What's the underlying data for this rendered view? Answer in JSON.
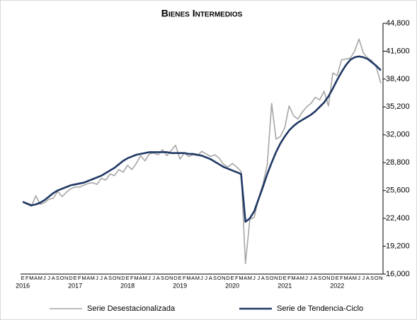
{
  "chart_data": {
    "type": "line",
    "title": "Bienes Intermedios",
    "categories": [
      "E",
      "F",
      "M",
      "A",
      "M",
      "J",
      "J",
      "A",
      "S",
      "O",
      "N",
      "D",
      "E",
      "F",
      "M",
      "A",
      "M",
      "J",
      "J",
      "A",
      "S",
      "O",
      "N",
      "D",
      "E",
      "F",
      "M",
      "A",
      "M",
      "J",
      "J",
      "A",
      "S",
      "O",
      "N",
      "D",
      "E",
      "F",
      "M",
      "A",
      "M",
      "J",
      "J",
      "A",
      "S",
      "O",
      "N",
      "D",
      "E",
      "F",
      "M",
      "A",
      "M",
      "J",
      "J",
      "A",
      "S",
      "O",
      "N",
      "D",
      "E",
      "F",
      "M",
      "A",
      "M",
      "J",
      "J",
      "A",
      "S",
      "O",
      "N",
      "D",
      "E",
      "F",
      "M",
      "A",
      "M",
      "J",
      "J",
      "A",
      "S",
      "O",
      "N"
    ],
    "years": [
      "2016",
      "2017",
      "2018",
      "2019",
      "2020",
      "2021",
      "2022"
    ],
    "series": [
      {
        "name": "Serie Desestacionalizada",
        "color": "#a6a6a6",
        "width": 1.6,
        "values": [
          24300,
          24000,
          23800,
          25000,
          24000,
          24200,
          24600,
          24700,
          25500,
          24900,
          25400,
          25800,
          26000,
          26000,
          26200,
          26400,
          26500,
          26300,
          27000,
          26800,
          27500,
          27300,
          28000,
          27700,
          28500,
          28000,
          28700,
          29600,
          29000,
          29800,
          29900,
          29700,
          30300,
          29600,
          30200,
          30800,
          29200,
          29900,
          29500,
          29700,
          29600,
          30100,
          29800,
          29500,
          29700,
          29300,
          28600,
          28300,
          28700,
          28300,
          27800,
          17200,
          22300,
          22500,
          24700,
          26300,
          28600,
          35600,
          31500,
          31800,
          32800,
          35300,
          34200,
          33800,
          34600,
          35200,
          35600,
          36300,
          36000,
          37000,
          35300,
          39100,
          38800,
          40600,
          40700,
          40800,
          41600,
          43000,
          41400,
          40800,
          40500,
          39700,
          37900
        ]
      },
      {
        "name": "Serie de Tendencia-Ciclo",
        "color": "#1f3864",
        "width": 2.6,
        "values": [
          24300,
          24100,
          23900,
          24000,
          24200,
          24500,
          24900,
          25300,
          25600,
          25800,
          26000,
          26200,
          26300,
          26400,
          26500,
          26700,
          26900,
          27100,
          27300,
          27600,
          27900,
          28200,
          28600,
          29000,
          29300,
          29500,
          29700,
          29800,
          29900,
          30000,
          30000,
          30000,
          30000,
          30000,
          29900,
          29900,
          29900,
          29900,
          29800,
          29800,
          29700,
          29600,
          29400,
          29200,
          28900,
          28600,
          28300,
          28100,
          27900,
          27700,
          27500,
          22000,
          22400,
          23200,
          24600,
          26000,
          27500,
          28800,
          30000,
          31000,
          31800,
          32500,
          33000,
          33400,
          33700,
          34000,
          34300,
          34700,
          35200,
          35700,
          36400,
          37300,
          38300,
          39200,
          40000,
          40600,
          40900,
          41000,
          40900,
          40700,
          40300,
          39900,
          39400
        ]
      }
    ],
    "ylim": [
      16000,
      44800
    ],
    "yticks": [
      {
        "value": 16000,
        "label": "16,000"
      },
      {
        "value": 19200,
        "label": "19,200"
      },
      {
        "value": 22400,
        "label": "22,400"
      },
      {
        "value": 25600,
        "label": "25,600"
      },
      {
        "value": 28800,
        "label": "28,800"
      },
      {
        "value": 32000,
        "label": "32,000"
      },
      {
        "value": 35200,
        "label": "35,200"
      },
      {
        "value": 38400,
        "label": "38,400"
      },
      {
        "value": 41600,
        "label": "41,600"
      },
      {
        "value": 44800,
        "label": "44,800"
      }
    ],
    "grid": false,
    "legend": "bottom"
  }
}
